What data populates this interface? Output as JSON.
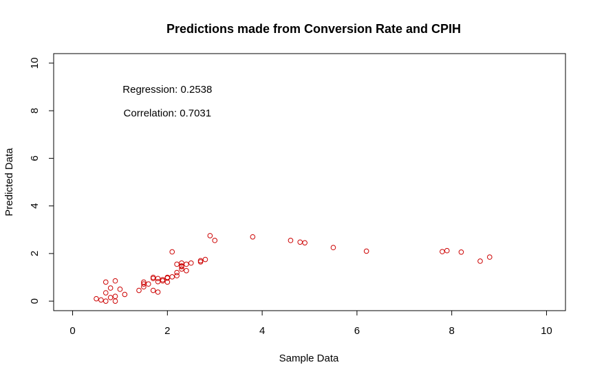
{
  "chart_data": {
    "type": "scatter",
    "title": "Predictions made from Conversion Rate and CPIH",
    "xlabel": "Sample Data",
    "ylabel": "Predicted Data",
    "xlim": [
      -0.4,
      10.4
    ],
    "ylim": [
      -0.4,
      10.4
    ],
    "xticks": [
      0,
      2,
      4,
      6,
      8,
      10
    ],
    "yticks": [
      0,
      2,
      4,
      6,
      8,
      10
    ],
    "grid": false,
    "point_color": "#cc0000",
    "annotations": [
      {
        "text": "Regression: 0.2538",
        "x": 2.0,
        "y": 8.9
      },
      {
        "text": "Correlation: 0.7031",
        "x": 2.0,
        "y": 7.9
      }
    ],
    "series": [
      {
        "x": [
          0.5,
          0.6,
          0.7,
          0.7,
          0.7,
          0.8,
          0.8,
          0.9,
          0.9,
          0.9,
          1.0,
          1.1,
          1.4,
          1.5,
          1.5,
          1.5,
          1.6,
          1.7,
          1.7,
          1.7,
          1.8,
          1.8,
          1.8,
          1.9,
          1.9,
          2.0,
          2.0,
          2.0,
          2.1,
          2.1,
          2.2,
          2.2,
          2.2,
          2.3,
          2.3,
          2.3,
          2.3,
          2.4,
          2.4,
          2.5,
          2.7,
          2.7,
          2.8,
          2.9,
          3.0,
          3.8,
          4.6,
          4.8,
          4.9,
          5.5,
          6.2,
          7.8,
          7.9,
          8.2,
          8.6,
          8.8
        ],
        "y": [
          0.1,
          0.05,
          0.0,
          0.35,
          0.8,
          0.55,
          0.15,
          0.2,
          0.85,
          0.0,
          0.5,
          0.28,
          0.45,
          0.8,
          0.72,
          0.6,
          0.72,
          1.0,
          0.95,
          0.45,
          0.38,
          0.95,
          0.82,
          0.9,
          0.85,
          1.0,
          0.97,
          0.8,
          1.02,
          2.07,
          1.55,
          1.2,
          1.07,
          1.6,
          1.48,
          1.45,
          1.35,
          1.28,
          1.55,
          1.6,
          1.65,
          1.7,
          1.75,
          2.75,
          2.55,
          2.7,
          2.55,
          2.48,
          2.45,
          2.25,
          2.1,
          2.08,
          2.12,
          2.06,
          1.68,
          1.85
        ]
      }
    ]
  }
}
